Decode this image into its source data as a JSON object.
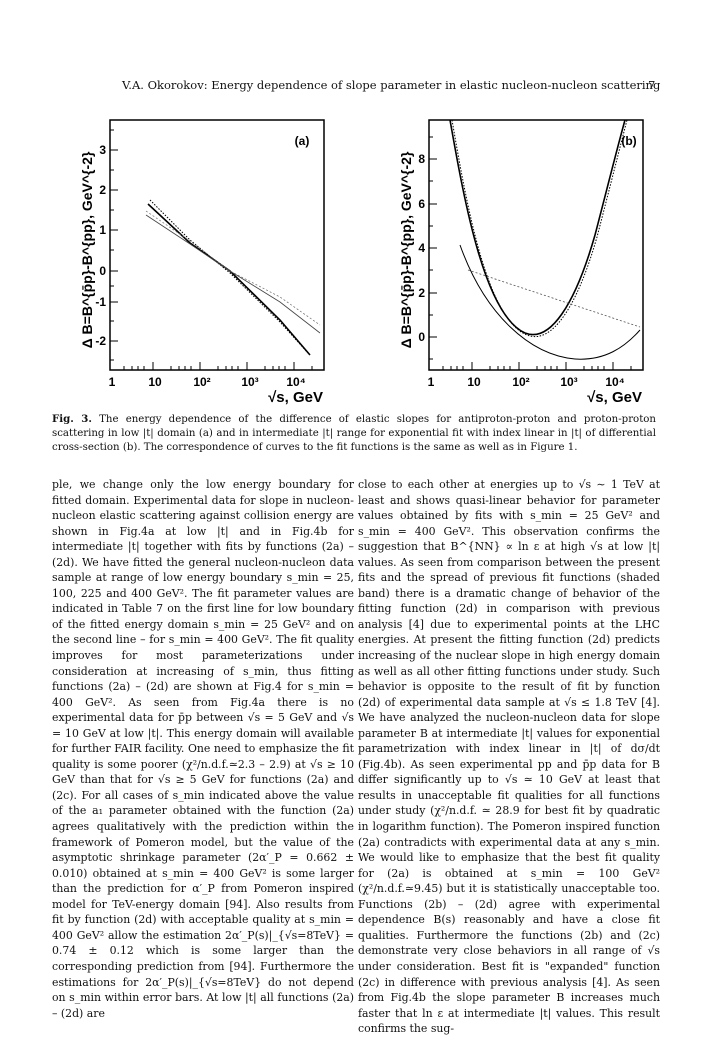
{
  "header": {
    "running_title": "V.A. Okorokov: Energy dependence of slope parameter in elastic nucleon-nucleon scattering",
    "page_number": "7"
  },
  "figure": {
    "panel_a": {
      "tag": "(a)",
      "ylabel": "Δ B=B^{p̄p}-B^{pp}, GeV^{-2}",
      "xlabel": "√s, GeV",
      "xticks": [
        "1",
        "10",
        "10²",
        "10³",
        "10⁴"
      ],
      "yticks": [
        "3",
        "2",
        "1",
        "0",
        "-1",
        "-2"
      ]
    },
    "panel_b": {
      "tag": "(b)",
      "ylabel": "Δ B=B^{p̄p}-B^{pp}, GeV^{-2}",
      "xlabel": "√s, GeV",
      "xticks": [
        "1",
        "10",
        "10²",
        "10³",
        "10⁴"
      ],
      "yticks": [
        "8",
        "6",
        "4",
        "2",
        "0"
      ]
    }
  },
  "caption": {
    "label": "Fig. 3.",
    "text": "The energy dependence of the difference of elastic slopes for antiproton-proton and proton-proton scattering in low |t| domain (a) and in intermediate |t| range for exponential fit with index linear in |t| of differential cross-section (b). The correspondence of curves to the fit functions is the same as well as in Figure 1."
  },
  "body": {
    "left_column": "ple, we change only the low energy boundary for fitted domain. Experimental data for slope in nucleon-nucleon elastic scattering against collision energy are shown in Fig.4a at low |t| and in Fig.4b for intermediate |t| together with fits by functions (2a) – (2d). We have fitted the general nucleon-nucleon data sample at range of low energy boundary s_min = 25, 100, 225 and 400 GeV². The fit parameter values are indicated in Table 7 on the first line for low boundary of the fitted energy domain s_min = 25 GeV² and on the second line – for s_min = 400 GeV². The fit quality improves for most parameterizations under consideration at increasing of s_min, thus fitting functions (2a) – (2d) are shown at Fig.4 for s_min = 400 GeV². As seen from Fig.4a there is no experimental data for p̄p between √s = 5 GeV and √s = 10 GeV at low |t|. This energy domain will available for further FAIR facility. One need to emphasize the fit quality is some poorer (χ²/n.d.f.≃2.3 – 2.9) at √s ≥ 10 GeV than that for √s ≥ 5 GeV for functions (2a) and (2c). For all cases of s_min indicated above the value of the a₁ parameter obtained with the function (2a) agrees qualitatively with the prediction within the framework of Pomeron model, but the value of the asymptotic shrinkage parameter (2α′_P = 0.662 ± 0.010) obtained at s_min = 400 GeV² is some larger than the prediction for α′_P from Pomeron inspired model for TeV-energy domain [94]. Also results from fit by function (2d) with acceptable quality at s_min = 400 GeV² allow the estimation 2α′_P(s)|_{√s=8TeV} = 0.74 ± 0.12 which is some larger than the corresponding prediction from [94]. Furthermore the estimations for 2α′_P(s)|_{√s=8TeV} do not depend on s_min within error bars. At low |t| all functions (2a) – (2d) are",
    "right_column": "close to each other at energies up to √s ∼ 1 TeV at least and shows quasi-linear behavior for parameter values obtained by fits with s_min = 25 GeV² and s_min = 400 GeV². This observation confirms the suggestion that B^{NN} ∝ ln ε at high √s at low |t| values. As seen from comparison between the present fits and the spread of previous fit functions (shaded band) there is a dramatic change of behavior of the fitting function (2d) in comparison with previous analysis [4] due to experimental points at the LHC energies. At present the fitting function (2d) predicts increasing of the nuclear slope in high energy domain as well as all other fitting functions under study. Such behavior is opposite to the result of fit by function (2d) of experimental data sample at √s ≤ 1.8 TeV [4]. We have analyzed the nucleon-nucleon data for slope parameter B at intermediate |t| values for exponential parametrization with index linear in |t| of dσ/dt (Fig.4b). As seen experimental pp and p̄p data for B differ significantly up to √s ≃ 10 GeV at least that results in unacceptable fit qualities for all functions under study (χ²/n.d.f. ≃ 28.9 for best fit by quadratic in logarithm function). The Pomeron inspired function (2a) contradicts with experimental data at any s_min. We would like to emphasize that the best fit quality for (2a) is obtained at s_min = 100 GeV² (χ²/n.d.f.≃9.45) but it is statistically unacceptable too. Functions (2b) – (2d) agree with experimental dependence B(s) reasonably and have a close fit qualities. Furthermore the functions (2b) and (2c) demonstrate very close behaviors in all range of √s under consideration. Best fit is \"expanded\" function (2c) in difference with previous analysis [4]. As seen from Fig.4b the slope parameter B increases much faster that ln ε at intermediate |t| values. This result confirms the sug-"
  }
}
